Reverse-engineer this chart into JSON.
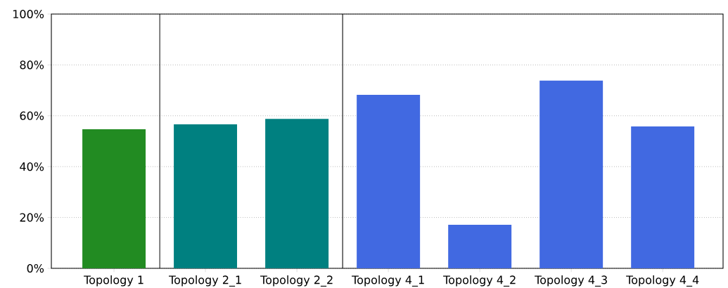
{
  "chart_data": {
    "type": "bar",
    "categories": [
      "Topology 1",
      "Topology 2_1",
      "Topology 2_2",
      "Topology 4_1",
      "Topology 4_2",
      "Topology 4_3",
      "Topology 4_4"
    ],
    "values": [
      54.7,
      56.6,
      58.8,
      68.2,
      17.1,
      73.8,
      55.8
    ],
    "colors": [
      "#228b22",
      "#008080",
      "#008080",
      "#4169e1",
      "#4169e1",
      "#4169e1",
      "#4169e1"
    ],
    "ylim": [
      0,
      100
    ],
    "yticks": [
      {
        "value": 0,
        "label": "0%"
      },
      {
        "value": 20,
        "label": "20%"
      },
      {
        "value": 40,
        "label": "40%"
      },
      {
        "value": 60,
        "label": "60%"
      },
      {
        "value": 80,
        "label": "80%"
      },
      {
        "value": 100,
        "label": "100%"
      }
    ],
    "grid": "y"
  }
}
